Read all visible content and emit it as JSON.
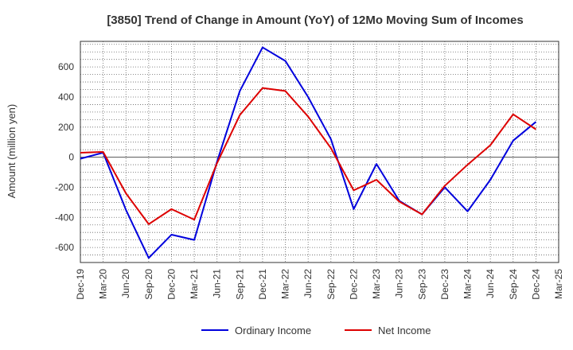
{
  "chart_data": {
    "type": "line",
    "title": "[3850]  Trend of Change in Amount (YoY) of 12Mo Moving Sum of Incomes",
    "xlabel": "",
    "ylabel": "Amount (million yen)",
    "ylim": [
      -700,
      770
    ],
    "yticks": [
      -600,
      -400,
      -200,
      0,
      200,
      400,
      600
    ],
    "categories": [
      "Dec-19",
      "Mar-20",
      "Jun-20",
      "Sep-20",
      "Dec-20",
      "Mar-21",
      "Jun-21",
      "Sep-21",
      "Dec-21",
      "Mar-22",
      "Jun-22",
      "Sep-22",
      "Dec-22",
      "Mar-23",
      "Jun-23",
      "Sep-23",
      "Dec-23",
      "Mar-24",
      "Jun-24",
      "Sep-24",
      "Dec-24",
      "Mar-25"
    ],
    "grid": true,
    "legend_position": "bottom",
    "series": [
      {
        "name": "Ordinary Income",
        "color": "#0000dd",
        "values": [
          -10,
          30,
          -350,
          -670,
          -515,
          -550,
          -30,
          440,
          730,
          640,
          400,
          120,
          -345,
          -45,
          -290,
          -380,
          -200,
          -360,
          -150,
          110,
          235,
          null
        ]
      },
      {
        "name": "Net Income",
        "color": "#dd0000",
        "values": [
          30,
          35,
          -240,
          -445,
          -345,
          -415,
          -40,
          280,
          460,
          440,
          270,
          60,
          -220,
          -150,
          -295,
          -380,
          -190,
          -50,
          80,
          285,
          185,
          null
        ]
      }
    ]
  }
}
